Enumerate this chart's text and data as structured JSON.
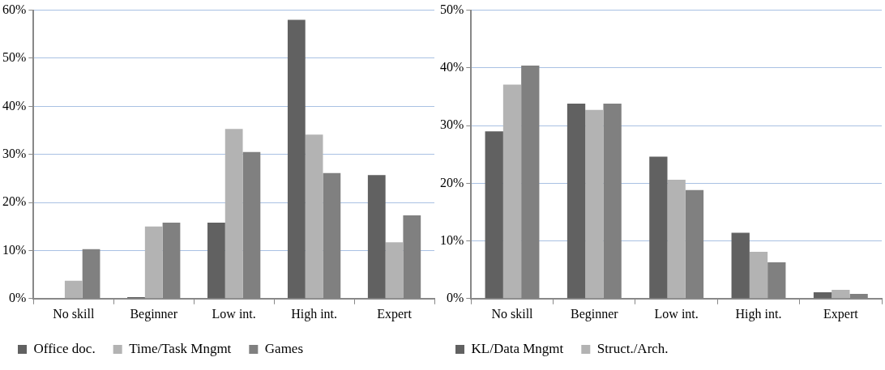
{
  "chart_data": [
    {
      "type": "bar",
      "categories": [
        "No skill",
        "Beginner",
        "Low int.",
        "High int.",
        "Expert"
      ],
      "series": [
        {
          "name": "Office doc.",
          "color": "#616161",
          "values": [
            0,
            0.3,
            15.8,
            58,
            25.7
          ]
        },
        {
          "name": "Time/Task Mngmt",
          "color": "#b3b3b3",
          "values": [
            3.7,
            15,
            35.3,
            34.1,
            11.7
          ]
        },
        {
          "name": "Games",
          "color": "#808080",
          "values": [
            10.3,
            15.8,
            30.5,
            26.1,
            17.3
          ]
        }
      ],
      "ylim": [
        0,
        60
      ],
      "yticks": [
        {
          "value": 0,
          "label": "0%"
        },
        {
          "value": 10,
          "label": "10%"
        },
        {
          "value": 20,
          "label": "20%"
        },
        {
          "value": 30,
          "label": "30%"
        },
        {
          "value": 40,
          "label": "40%"
        },
        {
          "value": 50,
          "label": "50%"
        },
        {
          "value": 60,
          "label": "60%"
        }
      ],
      "grid": "y",
      "legend": "bottom"
    },
    {
      "type": "bar",
      "categories": [
        "No skill",
        "Beginner",
        "Low int.",
        "High int.",
        "Expert"
      ],
      "series": [
        {
          "name": "KL/Data Mngmt",
          "color": "#616161",
          "values": [
            29,
            33.8,
            24.6,
            11.4,
            1.1
          ]
        },
        {
          "name": "Struct./Arch.",
          "color": "#b3b3b3",
          "values": [
            37.1,
            32.7,
            20.6,
            8.1,
            1.5
          ]
        },
        {
          "color": "#808080",
          "values": [
            40.4,
            33.8,
            18.8,
            6.3,
            0.8
          ]
        }
      ],
      "ylim": [
        0,
        50
      ],
      "yticks": [
        {
          "value": 0,
          "label": "0%"
        },
        {
          "value": 10,
          "label": "10%"
        },
        {
          "value": 20,
          "label": "20%"
        },
        {
          "value": 30,
          "label": "30%"
        },
        {
          "value": 40,
          "label": "40%"
        },
        {
          "value": 50,
          "label": "50%"
        }
      ],
      "grid": "y",
      "legend": "bottom"
    }
  ]
}
